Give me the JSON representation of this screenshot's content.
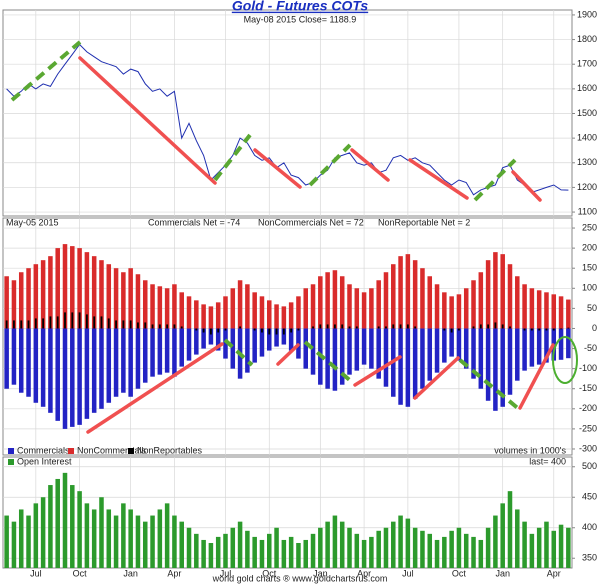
{
  "chart_data": [
    {
      "type": "line",
      "title": "Gold - Futures COTs",
      "subtitle": "May-08  2015  Close= 1188.9",
      "color": "#1f2fb0",
      "values": [
        1600,
        1570,
        1590,
        1620,
        1600,
        1620,
        1610,
        1660,
        1700,
        1740,
        1780,
        1750,
        1730,
        1710,
        1700,
        1690,
        1660,
        1680,
        1670,
        1620,
        1590,
        1600,
        1570,
        1590,
        1400,
        1460,
        1390,
        1330,
        1230,
        1260,
        1290,
        1330,
        1400,
        1380,
        1330,
        1310,
        1320,
        1280,
        1300,
        1250,
        1240,
        1210,
        1220,
        1250,
        1270,
        1320,
        1330,
        1340,
        1300,
        1290,
        1300,
        1260,
        1270,
        1320,
        1330,
        1310,
        1320,
        1300,
        1290,
        1260,
        1230,
        1210,
        1230,
        1220,
        1170,
        1190,
        1200,
        1210,
        1280,
        1290,
        1230,
        1210,
        1180,
        1190,
        1200,
        1210,
        1190,
        1189
      ],
      "ylim": [
        1084,
        1920
      ],
      "yticks": [
        1100,
        1200,
        1300,
        1400,
        1500,
        1600,
        1700,
        1800,
        1900
      ],
      "grid": true
    },
    {
      "type": "bar",
      "date": "May-05 2015",
      "annotations": [
        "Commercials Net = -74",
        "NonCommercials Net = 72",
        "NonReportable Net = 2"
      ],
      "note": "volumes in 1000's",
      "series": [
        {
          "name": "Commercials",
          "color": "#2323c4",
          "values": [
            -150,
            -140,
            -160,
            -170,
            -185,
            -195,
            -210,
            -230,
            -250,
            -245,
            -240,
            -225,
            -210,
            -200,
            -185,
            -170,
            -160,
            -170,
            -150,
            -135,
            -120,
            -115,
            -110,
            -120,
            -95,
            -80,
            -65,
            -50,
            -40,
            -55,
            -75,
            -100,
            -125,
            -110,
            -85,
            -70,
            -55,
            -45,
            -40,
            -55,
            -75,
            -100,
            -115,
            -140,
            -150,
            -155,
            -140,
            -115,
            -105,
            -90,
            -100,
            -125,
            -145,
            -170,
            -190,
            -195,
            -175,
            -150,
            -130,
            -110,
            -85,
            -70,
            -80,
            -100,
            -125,
            -150,
            -180,
            -205,
            -195,
            -165,
            -130,
            -105,
            -95,
            -90,
            -85,
            -80,
            -78,
            -74
          ]
        },
        {
          "name": "NonCommercials",
          "color": "#d92b2b",
          "values": [
            130,
            120,
            140,
            150,
            160,
            170,
            180,
            200,
            210,
            205,
            200,
            190,
            180,
            170,
            160,
            150,
            140,
            150,
            135,
            120,
            110,
            105,
            100,
            110,
            90,
            80,
            70,
            60,
            55,
            65,
            80,
            100,
            120,
            110,
            90,
            80,
            70,
            60,
            55,
            65,
            80,
            100,
            110,
            130,
            140,
            145,
            130,
            110,
            100,
            90,
            100,
            120,
            140,
            160,
            180,
            185,
            170,
            150,
            130,
            110,
            90,
            80,
            85,
            100,
            120,
            140,
            170,
            190,
            185,
            160,
            130,
            110,
            100,
            95,
            90,
            85,
            80,
            72
          ]
        },
        {
          "name": "NonReportables",
          "color": "#000000",
          "values": [
            20,
            20,
            20,
            20,
            25,
            25,
            30,
            30,
            40,
            40,
            40,
            35,
            30,
            30,
            25,
            20,
            20,
            20,
            15,
            15,
            10,
            10,
            10,
            10,
            5,
            0,
            -5,
            -10,
            -15,
            -10,
            -5,
            0,
            5,
            0,
            -5,
            -10,
            -15,
            -15,
            -15,
            -10,
            -5,
            0,
            5,
            10,
            10,
            10,
            10,
            5,
            5,
            0,
            0,
            5,
            5,
            10,
            10,
            10,
            5,
            0,
            0,
            0,
            -5,
            -10,
            -5,
            0,
            5,
            10,
            10,
            15,
            10,
            5,
            0,
            -5,
            -5,
            -5,
            -5,
            -5,
            -2,
            2
          ]
        }
      ],
      "ylim": [
        -315,
        275
      ],
      "yticks": [
        -300,
        -250,
        -200,
        -150,
        -100,
        -50,
        0,
        50,
        100,
        150,
        200,
        250
      ],
      "grid": true
    },
    {
      "type": "bar",
      "last_label": "last= 400",
      "source": "world gold charts ® www.goldchartsrus.com",
      "series": [
        {
          "name": "Open Interest",
          "color": "#2c9a2c",
          "values": [
            420,
            410,
            430,
            420,
            440,
            450,
            470,
            480,
            490,
            470,
            460,
            440,
            430,
            450,
            430,
            420,
            440,
            430,
            420,
            410,
            420,
            430,
            440,
            420,
            410,
            400,
            390,
            380,
            375,
            385,
            390,
            400,
            410,
            395,
            385,
            380,
            390,
            400,
            380,
            385,
            375,
            380,
            390,
            400,
            410,
            420,
            410,
            400,
            390,
            380,
            385,
            395,
            400,
            410,
            420,
            415,
            400,
            395,
            390,
            380,
            385,
            395,
            400,
            390,
            385,
            380,
            400,
            420,
            440,
            460,
            430,
            410,
            390,
            400,
            410,
            395,
            405,
            400
          ]
        }
      ],
      "ylim": [
        334,
        516
      ],
      "yticks": [
        350,
        400,
        450,
        500
      ],
      "grid": true,
      "xlim": [
        -0.5,
        77.5
      ],
      "xticks": [
        {
          "value": 4,
          "label": "Jul"
        },
        {
          "value": 10,
          "label": "Oct"
        },
        {
          "value": 17,
          "label": "Jan"
        },
        {
          "value": 23,
          "label": "Apr"
        },
        {
          "value": 30,
          "label": "Jul"
        },
        {
          "value": 36,
          "label": "Oct"
        },
        {
          "value": 43,
          "label": "Jan"
        },
        {
          "value": 49,
          "label": "Apr"
        },
        {
          "value": 55,
          "label": "Jul"
        },
        {
          "value": 62,
          "label": "Oct"
        },
        {
          "value": 68,
          "label": "Jan"
        },
        {
          "value": 75,
          "label": "Apr"
        }
      ]
    }
  ]
}
